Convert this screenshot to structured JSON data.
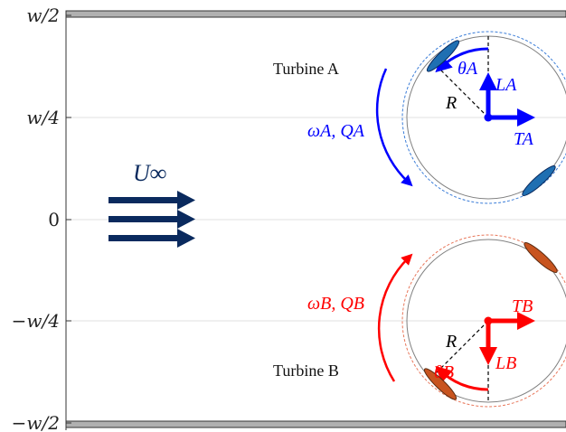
{
  "axis_ticks": [
    "w/2",
    "w/4",
    "0",
    "−w/4",
    "−w/2"
  ],
  "flow_label": "U∞",
  "turbine_a": {
    "label": "Turbine A",
    "rotation_label": "ωA, QA",
    "theta_label": "θA",
    "lift_label": "LA",
    "thrust_label": "TA",
    "radius_label": "R",
    "color": "#0000ff",
    "blade_color": "#1f6fb2"
  },
  "turbine_b": {
    "label": "Turbine B",
    "rotation_label": "ωB, QB",
    "theta_label": "θB",
    "lift_label": "LB",
    "thrust_label": "TB",
    "radius_label": "R",
    "color": "#ff0000",
    "blade_color": "#c8541f"
  },
  "colors": {
    "flow_arrow": "#0a2a5e",
    "wall": "#b0b0b0",
    "gridline": "#e0e0e0"
  }
}
